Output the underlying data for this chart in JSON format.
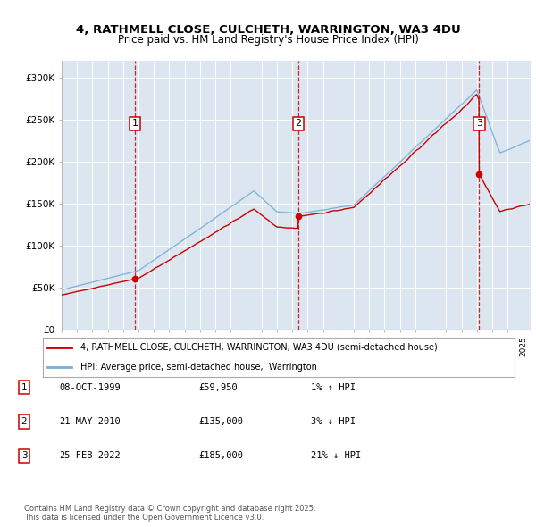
{
  "title_line1": "4, RATHMELL CLOSE, CULCHETH, WARRINGTON, WA3 4DU",
  "title_line2": "Price paid vs. HM Land Registry's House Price Index (HPI)",
  "background_color": "#dce6f1",
  "fig_bg_color": "#ffffff",
  "sale_dates_num": [
    1999.77,
    2010.39,
    2022.15
  ],
  "sale_prices": [
    59950,
    135000,
    185000
  ],
  "sale_labels": [
    "1",
    "2",
    "3"
  ],
  "price_line_color": "#cc0000",
  "hpi_line_color": "#7aaed6",
  "legend_price_label": "4, RATHMELL CLOSE, CULCHETH, WARRINGTON, WA3 4DU (semi-detached house)",
  "legend_hpi_label": "HPI: Average price, semi-detached house,  Warrington",
  "table_entries": [
    {
      "num": "1",
      "date": "08-OCT-1999",
      "price": "£59,950",
      "hpi": "1% ↑ HPI"
    },
    {
      "num": "2",
      "date": "21-MAY-2010",
      "price": "£135,000",
      "hpi": "3% ↓ HPI"
    },
    {
      "num": "3",
      "date": "25-FEB-2022",
      "price": "£185,000",
      "hpi": "21% ↓ HPI"
    }
  ],
  "footer": "Contains HM Land Registry data © Crown copyright and database right 2025.\nThis data is licensed under the Open Government Licence v3.0.",
  "ylim": [
    0,
    320000
  ],
  "xlim_start": 1995.0,
  "xlim_end": 2025.5,
  "yticks": [
    0,
    50000,
    100000,
    150000,
    200000,
    250000,
    300000
  ],
  "ytick_labels": [
    "£0",
    "£50K",
    "£100K",
    "£150K",
    "£200K",
    "£250K",
    "£300K"
  ],
  "xticks": [
    1995,
    1996,
    1997,
    1998,
    1999,
    2000,
    2001,
    2002,
    2003,
    2004,
    2005,
    2006,
    2007,
    2008,
    2009,
    2010,
    2011,
    2012,
    2013,
    2014,
    2015,
    2016,
    2017,
    2018,
    2019,
    2020,
    2021,
    2022,
    2023,
    2024,
    2025
  ]
}
